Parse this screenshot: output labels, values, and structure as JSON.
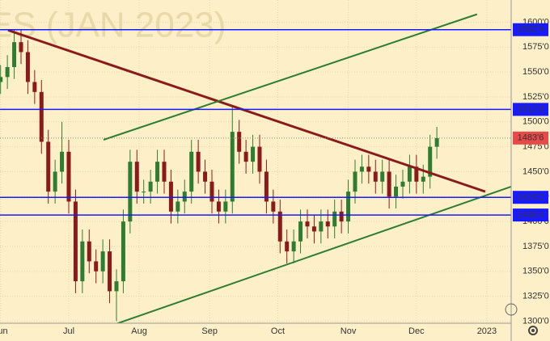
{
  "chart_data": {
    "type": "candlestick",
    "watermark": "ES (JAN 2023)",
    "x": [
      0,
      3,
      6,
      9,
      12,
      15,
      18,
      21,
      24,
      27,
      30,
      33,
      36,
      39,
      42,
      45,
      48,
      51,
      54,
      57,
      60,
      63,
      66,
      69,
      72,
      75,
      78,
      81,
      84,
      87,
      90,
      93,
      96,
      99,
      102,
      105,
      108,
      111,
      114,
      117,
      120,
      123,
      126,
      129,
      132,
      135,
      138,
      141,
      144,
      147,
      150,
      153,
      156,
      159,
      162,
      165,
      168,
      171,
      174,
      177,
      180,
      183,
      186,
      189,
      192
    ],
    "open": [
      1540,
      1545,
      1555,
      1580,
      1570,
      1540,
      1530,
      1480,
      1430,
      1450,
      1470,
      1420,
      1340,
      1380,
      1360,
      1350,
      1370,
      1330,
      1340,
      1400,
      1460,
      1430,
      1430,
      1440,
      1460,
      1440,
      1410,
      1420,
      1430,
      1470,
      1450,
      1440,
      1420,
      1410,
      1420,
      1490,
      1470,
      1460,
      1475,
      1450,
      1420,
      1410,
      1380,
      1370,
      1380,
      1400,
      1395,
      1390,
      1400,
      1395,
      1410,
      1400,
      1430,
      1450,
      1455,
      1450,
      1440,
      1450,
      1425,
      1435,
      1440,
      1455,
      1440,
      1445,
      1475
    ],
    "high": [
      1557,
      1567,
      1592,
      1592,
      1582,
      1552,
      1542,
      1492,
      1462,
      1500,
      1482,
      1432,
      1392,
      1392,
      1372,
      1382,
      1382,
      1352,
      1412,
      1472,
      1472,
      1442,
      1452,
      1472,
      1472,
      1452,
      1432,
      1442,
      1482,
      1482,
      1462,
      1452,
      1432,
      1432,
      1515,
      1502,
      1482,
      1487,
      1487,
      1462,
      1432,
      1422,
      1392,
      1392,
      1412,
      1412,
      1407,
      1412,
      1412,
      1422,
      1422,
      1442,
      1462,
      1467,
      1467,
      1462,
      1462,
      1462,
      1447,
      1452,
      1467,
      1467,
      1457,
      1487,
      1495
    ],
    "low": [
      1528,
      1533,
      1543,
      1558,
      1528,
      1518,
      1468,
      1418,
      1418,
      1438,
      1408,
      1328,
      1328,
      1348,
      1338,
      1338,
      1318,
      1300,
      1328,
      1388,
      1418,
      1418,
      1418,
      1428,
      1428,
      1398,
      1398,
      1408,
      1418,
      1438,
      1428,
      1408,
      1398,
      1398,
      1408,
      1458,
      1448,
      1448,
      1438,
      1408,
      1398,
      1368,
      1358,
      1358,
      1368,
      1383,
      1378,
      1378,
      1383,
      1383,
      1388,
      1388,
      1418,
      1438,
      1438,
      1428,
      1428,
      1413,
      1413,
      1423,
      1428,
      1428,
      1428,
      1433,
      1463
    ],
    "close": [
      1545,
      1555,
      1580,
      1570,
      1540,
      1530,
      1480,
      1430,
      1450,
      1470,
      1420,
      1340,
      1380,
      1360,
      1350,
      1370,
      1330,
      1340,
      1400,
      1460,
      1430,
      1430,
      1440,
      1460,
      1440,
      1410,
      1420,
      1430,
      1470,
      1450,
      1440,
      1420,
      1410,
      1420,
      1490,
      1470,
      1460,
      1475,
      1450,
      1420,
      1410,
      1380,
      1370,
      1380,
      1400,
      1395,
      1390,
      1400,
      1395,
      1410,
      1400,
      1430,
      1450,
      1455,
      1450,
      1440,
      1450,
      1425,
      1435,
      1440,
      1455,
      1440,
      1445,
      1475,
      1483.75
    ],
    "up_color": "#2e7d32",
    "down_color": "#8b1a1a",
    "xlim": [
      -0.25,
      224.7
    ],
    "xticks": [
      {
        "value": 0,
        "label": "Jun"
      },
      {
        "value": 30,
        "label": "Jul"
      },
      {
        "value": 61,
        "label": "Aug"
      },
      {
        "value": 92,
        "label": "Sep"
      },
      {
        "value": 122,
        "label": "Oct"
      },
      {
        "value": 153,
        "label": "Nov"
      },
      {
        "value": 183,
        "label": "Dec"
      },
      {
        "value": 214,
        "label": "2023"
      }
    ],
    "ylim": [
      1297.9,
      1622.3
    ],
    "yticks": [
      {
        "value": 1300,
        "label": "1300'0"
      },
      {
        "value": 1325,
        "label": "1325'0"
      },
      {
        "value": 1350,
        "label": "1350'0"
      },
      {
        "value": 1375,
        "label": "1375'0"
      },
      {
        "value": 1400,
        "label": "1400'0"
      },
      {
        "value": 1425,
        "label": "1425'0"
      },
      {
        "value": 1450,
        "label": "1450'0"
      },
      {
        "value": 1475,
        "label": "1475'0"
      },
      {
        "value": 1500,
        "label": "1500'0"
      },
      {
        "value": 1525,
        "label": "1525'0"
      },
      {
        "value": 1550,
        "label": "1550'0"
      },
      {
        "value": 1575,
        "label": "1575'0"
      },
      {
        "value": 1600,
        "label": "1600'0"
      }
    ],
    "grid": true,
    "levels": [
      {
        "value": 1592.5,
        "label": "1592'4",
        "color": "#1a1aff"
      },
      {
        "value": 1512.5,
        "label": "1512'4",
        "color": "#1a1aff"
      },
      {
        "value": 1424.25,
        "label": "1424'2",
        "color": "#1a1aff"
      },
      {
        "value": 1406.5,
        "label": "1406'4",
        "color": "#1a1aff"
      }
    ],
    "last_price": {
      "value": 1483.75,
      "label": "1483'6",
      "color": "#e84a4a"
    },
    "trendlines": [
      {
        "color": "#8b1a1a",
        "x": [
          3.3,
          213.3
        ],
        "y": [
          1592,
          1430
        ]
      },
      {
        "color": "#2e7d32",
        "x": [
          45.3,
          209.7
        ],
        "y": [
          1482,
          1608
        ]
      },
      {
        "color": "#2e7d32",
        "x": [
          44.2,
          224.7
        ],
        "y": [
          1292,
          1435
        ]
      }
    ]
  }
}
